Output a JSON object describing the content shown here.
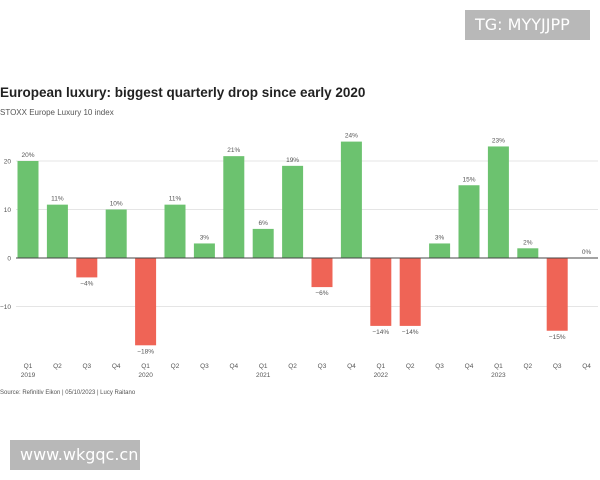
{
  "watermarks": {
    "top": "TG: MYYJJPP",
    "bottom": "www.wkgqc.cn"
  },
  "chart_data": {
    "type": "bar",
    "title": "European luxury: biggest quarterly drop since early 2020",
    "subtitle": "STOXX Europe Luxury 10 index",
    "source": "Source: Refinitiv Eikon | 05/10/2023 | Lucy Raitano",
    "xlabel": "",
    "ylabel": "",
    "ylim": [
      -18,
      25
    ],
    "yticks": [
      20,
      10,
      0,
      -10
    ],
    "ytick_labels": [
      "20",
      "10",
      "0",
      "−10"
    ],
    "grid": true,
    "colors": {
      "positive": "#6cc26f",
      "negative": "#ef6456",
      "zero_line": "#444444",
      "grid": "#dddddd"
    },
    "categories": [
      "Q1",
      "Q2",
      "Q3",
      "Q4",
      "Q1",
      "Q2",
      "Q3",
      "Q4",
      "Q1",
      "Q2",
      "Q3",
      "Q4",
      "Q1",
      "Q2",
      "Q3",
      "Q4",
      "Q1",
      "Q2",
      "Q3",
      "Q4"
    ],
    "years": [
      {
        "index": 0,
        "label": "2019"
      },
      {
        "index": 4,
        "label": "2020"
      },
      {
        "index": 8,
        "label": "2021"
      },
      {
        "index": 12,
        "label": "2022"
      },
      {
        "index": 16,
        "label": "2023"
      }
    ],
    "values": [
      20,
      11,
      -4,
      10,
      -18,
      11,
      3,
      21,
      6,
      19,
      -6,
      24,
      -14,
      -14,
      3,
      15,
      23,
      2,
      -15,
      0
    ],
    "value_labels": [
      "20%",
      "11%",
      "−4%",
      "10%",
      "−18%",
      "11%",
      "3%",
      "21%",
      "6%",
      "19%",
      "−6%",
      "24%",
      "−14%",
      "−14%",
      "3%",
      "15%",
      "23%",
      "2%",
      "−15%",
      "0%"
    ]
  }
}
